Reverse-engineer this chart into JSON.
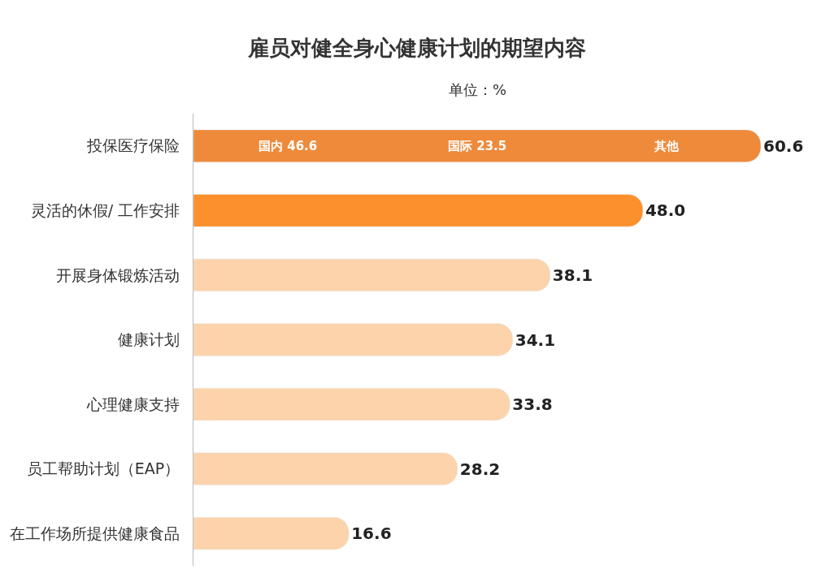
{
  "chart_data": {
    "type": "bar",
    "orientation": "horizontal",
    "title": "雇员对健全身心健康计划的期望内容",
    "subtitle": "单位：%",
    "categories": [
      "投保医疗保险",
      "灵活的休假/ 工作安排",
      "开展身体锻炼活动",
      "健康计划",
      "心理健康支持",
      "员工帮助计划（EAP）",
      "在工作场所提供健康食品"
    ],
    "values": [
      60.6,
      48.0,
      38.1,
      34.1,
      33.8,
      28.2,
      16.6
    ],
    "colors": [
      "#ee8a3a",
      "#fb902c",
      "#fcd3aa",
      "#fcd3aa",
      "#fcd3aa",
      "#fcd3aa",
      "#fcd3aa"
    ],
    "value_labels": [
      "60.6",
      "48.0",
      "38.1",
      "34.1",
      "33.8",
      "28.2",
      "16.6"
    ],
    "annotations": [
      "国内 46.6",
      "国际 23.5",
      "其他"
    ]
  }
}
